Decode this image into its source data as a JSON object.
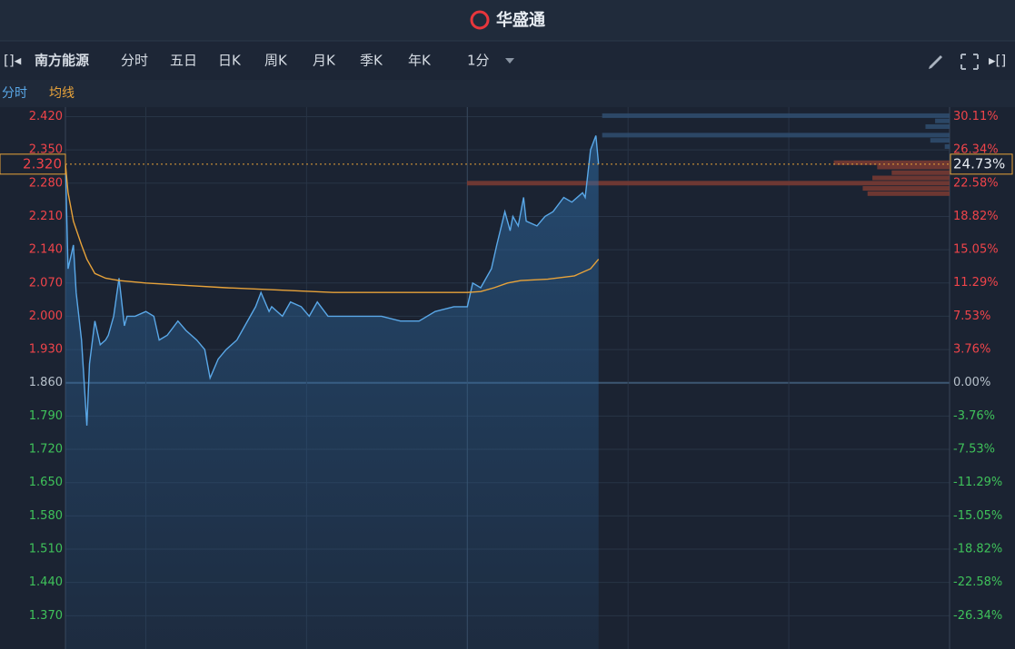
{
  "header": {
    "title": "华盛通"
  },
  "toolbar": {
    "stock_name": "南方能源",
    "tabs": [
      "分时",
      "五日",
      "日K",
      "周K",
      "月K",
      "季K",
      "年K"
    ],
    "interval": "1分"
  },
  "chart_data": {
    "type": "line",
    "series": [
      {
        "name": "分时",
        "color": "#5aa8e8",
        "x": [
          0,
          1,
          3,
          4,
          6,
          8,
          9,
          11,
          13,
          15,
          16,
          18,
          20,
          22,
          23,
          26,
          30,
          33,
          35,
          38,
          42,
          45,
          49,
          52,
          54,
          57,
          60,
          64,
          67,
          71,
          73,
          76,
          77,
          81,
          84,
          88,
          91,
          94,
          98,
          104,
          111,
          118,
          125,
          132,
          138,
          145,
          150,
          152,
          155,
          159,
          161,
          164,
          166,
          167,
          169,
          171,
          172,
          176,
          179,
          182,
          186,
          189,
          193,
          194,
          196,
          198,
          199
        ],
        "values": [
          2.32,
          2.1,
          2.15,
          2.05,
          1.95,
          1.77,
          1.9,
          1.99,
          1.94,
          1.95,
          1.96,
          2.0,
          2.08,
          1.98,
          2.0,
          2.0,
          2.01,
          2.0,
          1.95,
          1.96,
          1.99,
          1.97,
          1.95,
          1.93,
          1.87,
          1.91,
          1.93,
          1.95,
          1.98,
          2.02,
          2.05,
          2.01,
          2.02,
          2.0,
          2.03,
          2.02,
          2.0,
          2.03,
          2.0,
          2.0,
          2.0,
          2.0,
          1.99,
          1.99,
          2.01,
          2.02,
          2.02,
          2.07,
          2.06,
          2.1,
          2.15,
          2.22,
          2.18,
          2.21,
          2.19,
          2.25,
          2.2,
          2.19,
          2.21,
          2.22,
          2.25,
          2.24,
          2.26,
          2.25,
          2.35,
          2.38,
          2.32
        ]
      },
      {
        "name": "均线",
        "color": "#e8a33a",
        "x": [
          0,
          1,
          3,
          6,
          8,
          11,
          15,
          20,
          30,
          45,
          60,
          80,
          100,
          120,
          150,
          155,
          160,
          165,
          170,
          180,
          190,
          196,
          199
        ],
        "values": [
          2.32,
          2.26,
          2.2,
          2.15,
          2.12,
          2.09,
          2.08,
          2.075,
          2.07,
          2.065,
          2.06,
          2.055,
          2.05,
          2.05,
          2.05,
          2.052,
          2.06,
          2.07,
          2.075,
          2.078,
          2.085,
          2.1,
          2.12
        ]
      }
    ],
    "xlim": [
      0,
      330
    ],
    "xticks": [
      30,
      90,
      150,
      210,
      270
    ],
    "ylim": [
      1.3,
      2.44
    ],
    "yticks": [
      {
        "value": 2.42,
        "label": "2.420"
      },
      {
        "value": 2.35,
        "label": "2.350"
      },
      {
        "value": 2.28,
        "label": "2.280"
      },
      {
        "value": 2.21,
        "label": "2.210"
      },
      {
        "value": 2.14,
        "label": "2.140"
      },
      {
        "value": 2.07,
        "label": "2.070"
      },
      {
        "value": 2.0,
        "label": "2.000"
      },
      {
        "value": 1.93,
        "label": "1.930"
      },
      {
        "value": 1.86,
        "label": "1.860"
      },
      {
        "value": 1.79,
        "label": "1.790"
      },
      {
        "value": 1.72,
        "label": "1.720"
      },
      {
        "value": 1.65,
        "label": "1.650"
      },
      {
        "value": 1.58,
        "label": "1.580"
      },
      {
        "value": 1.51,
        "label": "1.510"
      },
      {
        "value": 1.44,
        "label": "1.440"
      },
      {
        "value": 1.37,
        "label": "1.370"
      }
    ],
    "y2lim": [
      -30.11,
      31.18
    ],
    "y2ticks": [
      {
        "value": 30.11,
        "label": "30.11%"
      },
      {
        "value": 26.34,
        "label": "26.34%"
      },
      {
        "value": 22.58,
        "label": "22.58%"
      },
      {
        "value": 18.82,
        "label": "18.82%"
      },
      {
        "value": 15.05,
        "label": "15.05%"
      },
      {
        "value": 11.29,
        "label": "11.29%"
      },
      {
        "value": 7.53,
        "label": "7.53%"
      },
      {
        "value": 3.76,
        "label": "3.76%"
      },
      {
        "value": 0,
        "label": "0.00%"
      },
      {
        "value": -3.76,
        "label": "-3.76%"
      },
      {
        "value": -7.53,
        "label": "-7.53%"
      },
      {
        "value": -11.29,
        "label": "-11.29%"
      },
      {
        "value": -15.05,
        "label": "-15.05%"
      },
      {
        "value": -18.82,
        "label": "-18.82%"
      },
      {
        "value": -22.58,
        "label": "-22.58%"
      },
      {
        "value": -26.34,
        "label": "-26.34%"
      }
    ],
    "last_price": {
      "value": 2.32,
      "label": "2.320"
    },
    "last_change": {
      "value": 24.73,
      "label": "24.73%"
    },
    "volume_max": 100,
    "volume_profile": [
      {
        "color": "#2f4d70",
        "prices": [
          2.422,
          2.411,
          2.399,
          2.381,
          2.37,
          2.357
        ],
        "volumes": [
          72,
          3,
          5,
          72,
          4,
          1
        ]
      },
      {
        "color": "#7b3b33",
        "prices": [
          2.323,
          2.314,
          2.302,
          2.291,
          2.28,
          2.269,
          2.258
        ],
        "volumes": [
          24,
          15,
          12,
          16,
          100,
          18,
          17
        ]
      }
    ],
    "up_color": "#f0444a",
    "down_color": "#3fc25a",
    "flat_color": "#b8c2cc",
    "grid": true
  }
}
